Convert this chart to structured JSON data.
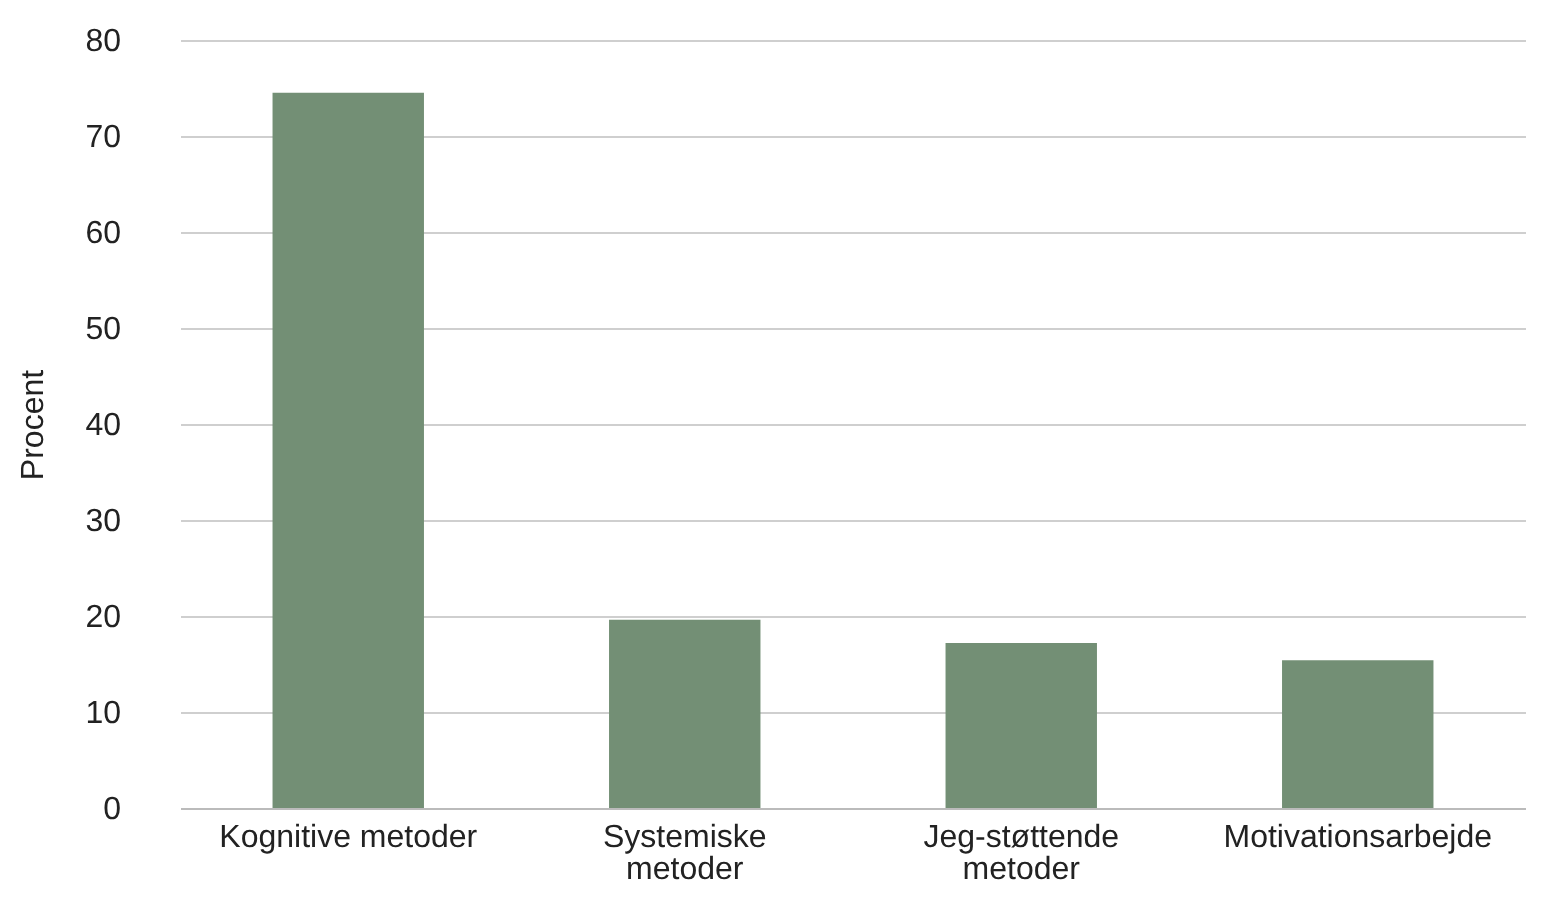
{
  "chart_data": {
    "type": "bar",
    "ylabel": "Procent",
    "categories": [
      "Kognitive metoder",
      "Systemiske metoder",
      "Jeg-støttende metoder",
      "Motivationsarbejde"
    ],
    "values": [
      74.5,
      19.6,
      17.2,
      15.4
    ],
    "color": "#738f75",
    "ylim": [
      0,
      80
    ],
    "yticks": [
      0,
      10,
      20,
      30,
      40,
      50,
      60,
      70,
      80
    ],
    "grid": "y"
  }
}
